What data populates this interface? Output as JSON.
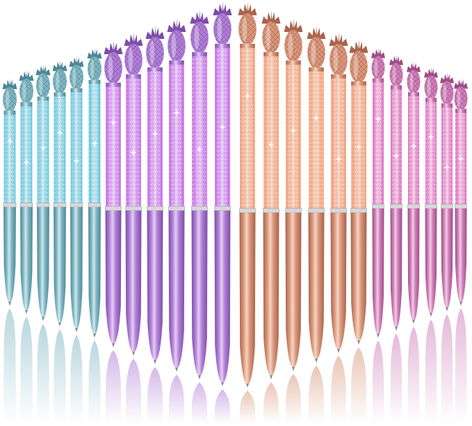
{
  "image": {
    "subject": "pineapple-crystal-ballpoint-pens",
    "background_color": "#ffffff",
    "groups": [
      {
        "name": "teal",
        "count": 6,
        "body": "#7fb6c2",
        "light": "#cfe8ee",
        "dark": "#4d8794",
        "crystal": "#5fc6e0"
      },
      {
        "name": "purple",
        "count": 6,
        "body": "#b07fd6",
        "light": "#e6cdf5",
        "dark": "#7d4ea8",
        "crystal": "#c96ce6"
      },
      {
        "name": "rose-gold",
        "count": 6,
        "body": "#d9967a",
        "light": "#f6d4c4",
        "dark": "#a8644c",
        "crystal": "#f2a27a"
      },
      {
        "name": "pink",
        "count": 6,
        "body": "#cf7fb8",
        "light": "#f2cde6",
        "dark": "#9c4d86",
        "crystal": "#e070c0"
      }
    ]
  }
}
